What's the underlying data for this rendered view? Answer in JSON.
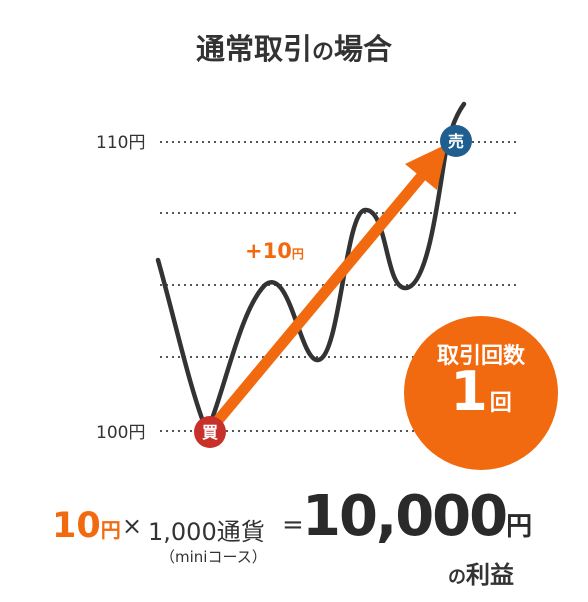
{
  "title": {
    "main_a": "通常取引",
    "particle": "の",
    "main_b": "場合"
  },
  "chart": {
    "label_high": "110円",
    "label_low": "100円",
    "gain_value": "+10",
    "gain_unit": "円",
    "buy_marker": "買",
    "sell_marker": "売",
    "colors": {
      "arrow": "#f26a0f",
      "line": "#333333",
      "buy": "#c8302a",
      "sell": "#1f5f8f"
    }
  },
  "badge": {
    "label": "取引回数",
    "count": "1",
    "unit": "回"
  },
  "formula": {
    "amount": "10",
    "amount_unit": "円",
    "times": "×",
    "units": "1,000通貨",
    "units_note": "（miniコース）",
    "equals": "=",
    "total": "10,000",
    "total_unit": "円"
  },
  "profit": {
    "particle": "の",
    "label": "利益"
  }
}
